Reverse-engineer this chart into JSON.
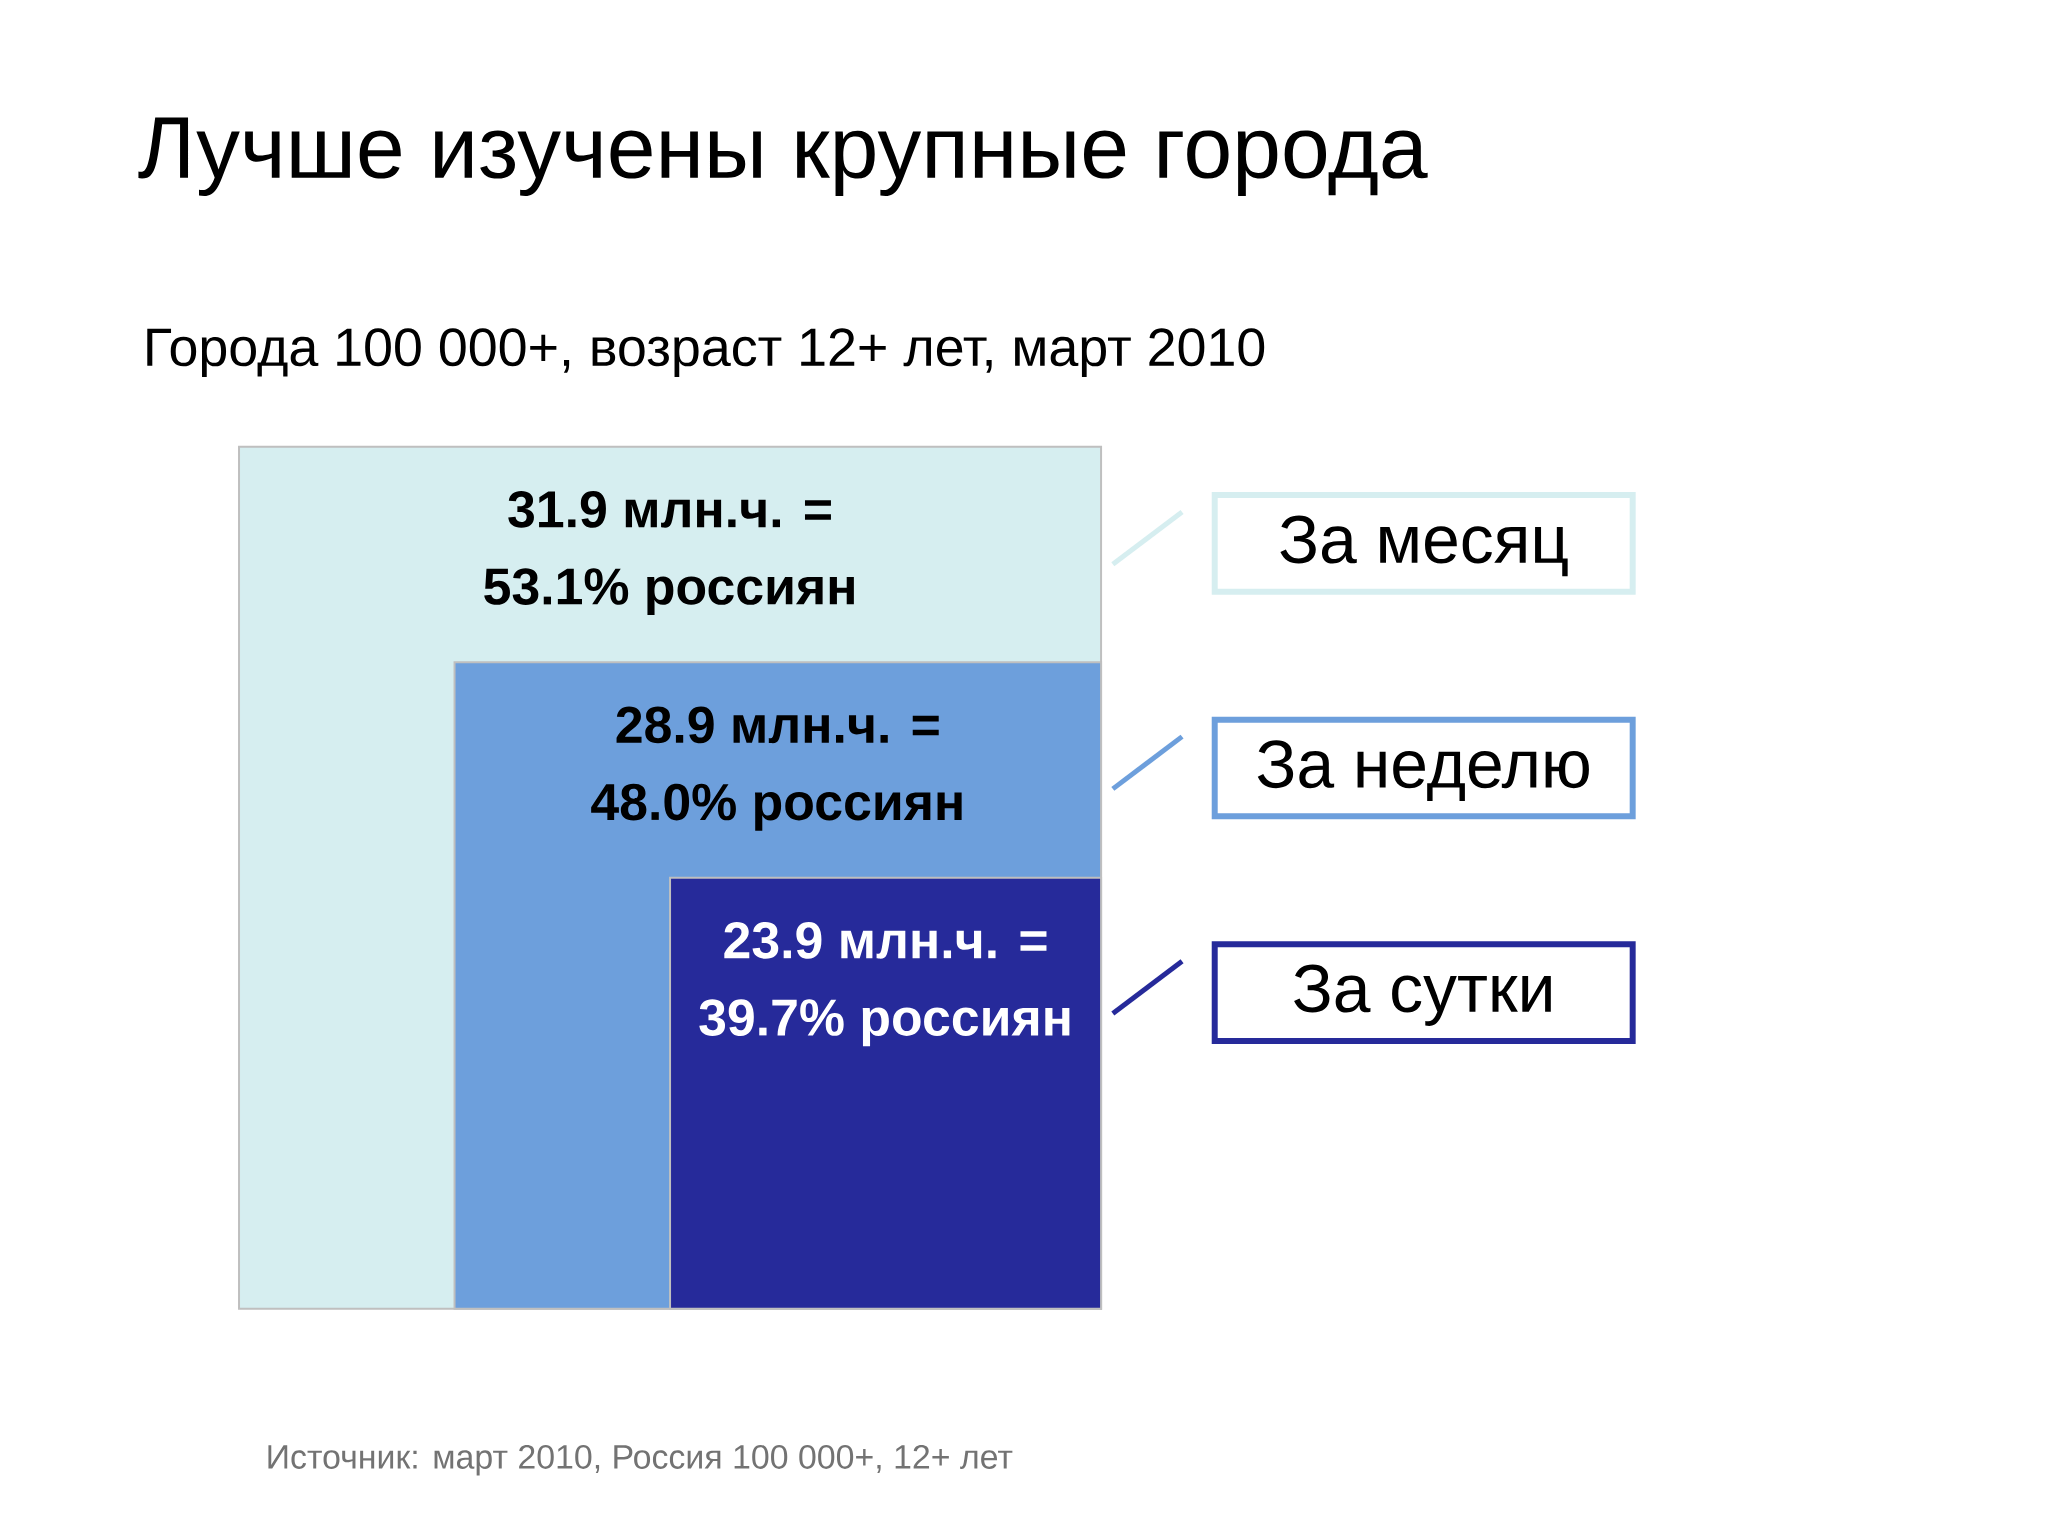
{
  "chart_data": {
    "type": "other",
    "title": "Лучше изучены крупные города",
    "subtitle": "Города 100 000+, возраст 12+ лет, март 2010",
    "categories": [
      "За месяц",
      "За неделю",
      "За сутки"
    ],
    "series": [
      {
        "values": [
          31.9,
          28.9,
          23.9
        ],
        "colors": [
          "#d6eef0",
          "#6d9fdc",
          "#262a9a"
        ],
        "value_labels": [
          "31.9 млн.ч. =",
          "28.9 млн.ч. =",
          "23.9 млн.ч. ="
        ]
      },
      {
        "values": [
          53.1,
          48.0,
          39.7
        ],
        "value_labels": [
          "53.1% россиян",
          "48.0% россиян",
          "39.7% россиян"
        ]
      }
    ],
    "annotations": [
      "Источник: март 2010, Россия 100 000+, 12+ лет"
    ]
  }
}
